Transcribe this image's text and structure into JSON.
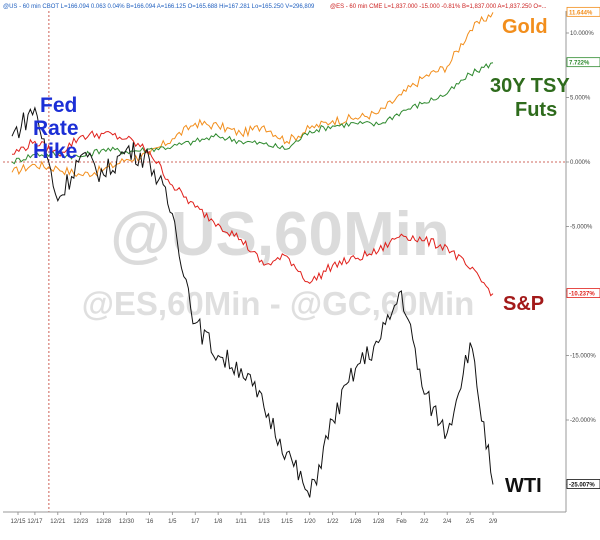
{
  "header": {
    "left": "@US - 60 min  CBOT  L=166.094  0.063  0.04%  B=166.094  A=166.125  O=165.688  Hi=167.281  Lo=165.250  V=296,809",
    "right": "@ES - 60 min  CME  L=1,837.000  -15.000  -0.81%  B=1,837.000  A=1,837.250  O=..."
  },
  "watermark": {
    "line1": "@US,60Min",
    "line2": "@ES,60Min - @GC,60Min"
  },
  "labels": {
    "fed": [
      "Fed",
      "Rate",
      "Hike"
    ],
    "gold": "Gold",
    "tsy": [
      "30Y TSY",
      "Futs"
    ],
    "sp": "S&P",
    "wti": "WTI"
  },
  "colors": {
    "gold": "#f28e1c",
    "tsy": "#2f8a2f",
    "sp": "#e0201b",
    "wti": "#111111",
    "fed": "#1c2fd6",
    "tsy_label": "#2e6b1c",
    "sp_label": "#a31a1a",
    "zero_line": "#c0392b"
  },
  "chart_data": {
    "type": "line",
    "x": [
      "12/15",
      "12/17",
      "12/21",
      "12/23",
      "12/28",
      "12/30",
      "'16",
      "1/5",
      "1/7",
      "1/8",
      "1/11",
      "1/13",
      "1/15",
      "1/20",
      "1/22",
      "1/26",
      "1/28",
      "Feb",
      "2/2",
      "2/4",
      "2/5",
      "2/9"
    ],
    "yunit": "%",
    "ylim": [
      -27,
      13
    ],
    "yticks": [
      "10.000%",
      "5.000%",
      "0.000%",
      "-5.000%",
      "-10.000%",
      "-15.000%",
      "-20.000%",
      "-25.000%"
    ],
    "ytick_values": [
      10,
      5,
      0,
      -5,
      -10,
      -15,
      -20,
      -25
    ],
    "event_index": 1,
    "series": [
      {
        "name": "Gold",
        "end_label": "11.644%",
        "values": [
          -0.8,
          -0.2,
          -0.5,
          -1.0,
          -0.6,
          0.2,
          0.6,
          1.8,
          3.0,
          2.8,
          2.2,
          2.8,
          1.6,
          2.6,
          3.2,
          3.4,
          3.8,
          5.2,
          6.6,
          7.4,
          10.2,
          11.6
        ]
      },
      {
        "name": "30Y TSY Futs",
        "end_label": "7.722%",
        "values": [
          0.0,
          0.6,
          0.6,
          0.4,
          1.0,
          0.8,
          1.0,
          1.2,
          1.6,
          2.0,
          1.6,
          1.4,
          1.0,
          2.4,
          2.8,
          3.0,
          2.9,
          3.9,
          4.6,
          5.3,
          6.8,
          7.7
        ]
      },
      {
        "name": "S&P",
        "end_label": "-10.237%",
        "values": [
          0.6,
          1.6,
          0.6,
          2.0,
          2.2,
          1.8,
          0.8,
          -1.8,
          -3.5,
          -4.8,
          -6.0,
          -8.0,
          -7.3,
          -9.4,
          -8.0,
          -7.5,
          -6.9,
          -5.6,
          -6.1,
          -6.6,
          -8.3,
          -10.2
        ]
      },
      {
        "name": "WTI",
        "end_label": "-25.007%",
        "values": [
          2.0,
          4.2,
          -3.0,
          0.5,
          -1.0,
          1.0,
          0.2,
          -4.0,
          -12.5,
          -15.0,
          -16.0,
          -19.0,
          -22.5,
          -26.0,
          -20.0,
          -16.0,
          -14.0,
          -10.0,
          -18.0,
          -21.0,
          -14.0,
          -25.0
        ]
      }
    ]
  }
}
